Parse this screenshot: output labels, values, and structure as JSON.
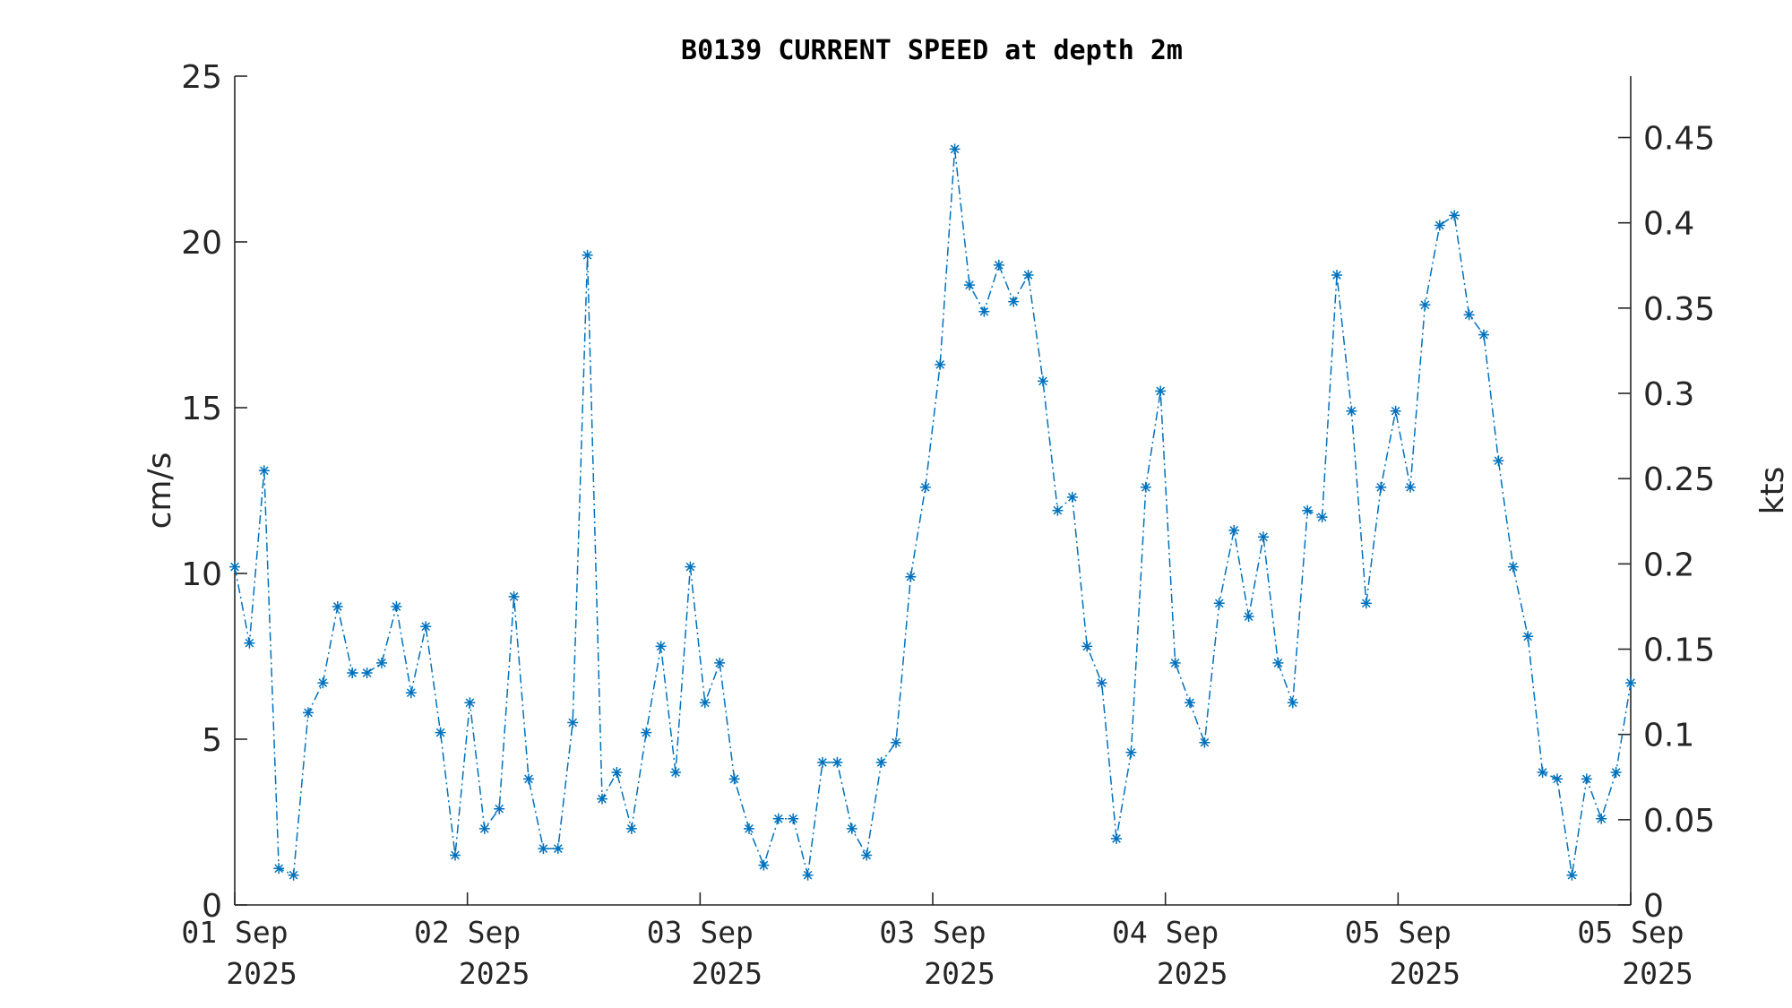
{
  "chart_data": {
    "type": "line",
    "title": "B0139 CURRENT SPEED at depth 2m",
    "ylabel": "cm/s",
    "ylabel_right": "kts",
    "ylim": [
      0,
      25
    ],
    "ylim_right": [
      0,
      0.486
    ],
    "yticks": [
      "0",
      "5",
      "10",
      "15",
      "20",
      "25"
    ],
    "yticks_right": [
      "0",
      "0.05",
      "0.1",
      "0.15",
      "0.2",
      "0.25",
      "0.3",
      "0.35",
      "0.4",
      "0.45"
    ],
    "xticks": [
      {
        "day": "01 Sep",
        "year": "2025"
      },
      {
        "day": "02 Sep",
        "year": "2025"
      },
      {
        "day": "03 Sep",
        "year": "2025"
      },
      {
        "day": "03 Sep",
        "year": "2025"
      },
      {
        "day": "04 Sep",
        "year": "2025"
      },
      {
        "day": "05 Sep",
        "year": "2025"
      },
      {
        "day": "05 Sep",
        "year": "2025"
      }
    ],
    "grid": false,
    "line_style": "dash-dot",
    "marker": "asterisk",
    "color": "#0072BD",
    "series": [
      {
        "name": "",
        "values": [
          10.2,
          7.9,
          13.1,
          1.1,
          0.9,
          5.8,
          6.7,
          9.0,
          7.0,
          7.0,
          7.3,
          9.0,
          6.4,
          8.4,
          5.2,
          1.5,
          6.1,
          2.3,
          2.9,
          9.3,
          3.8,
          1.7,
          1.7,
          5.5,
          19.6,
          3.2,
          4.0,
          2.3,
          5.2,
          7.8,
          4.0,
          10.2,
          6.1,
          7.3,
          3.8,
          2.3,
          1.2,
          2.6,
          2.6,
          0.9,
          4.3,
          4.3,
          2.3,
          1.5,
          4.3,
          4.9,
          9.9,
          12.6,
          16.3,
          22.8,
          18.7,
          17.9,
          19.3,
          18.2,
          19.0,
          15.8,
          11.9,
          12.3,
          7.8,
          6.7,
          2.0,
          4.6,
          12.6,
          15.5,
          7.3,
          6.1,
          4.9,
          9.1,
          11.3,
          8.7,
          11.1,
          7.3,
          6.1,
          11.9,
          11.7,
          19.0,
          14.9,
          9.1,
          12.6,
          14.9,
          12.6,
          18.1,
          20.5,
          20.8,
          17.8,
          17.2,
          13.4,
          10.2,
          8.1,
          4.0,
          3.8,
          0.9,
          3.8,
          2.6,
          4.0,
          6.7
        ]
      }
    ]
  }
}
